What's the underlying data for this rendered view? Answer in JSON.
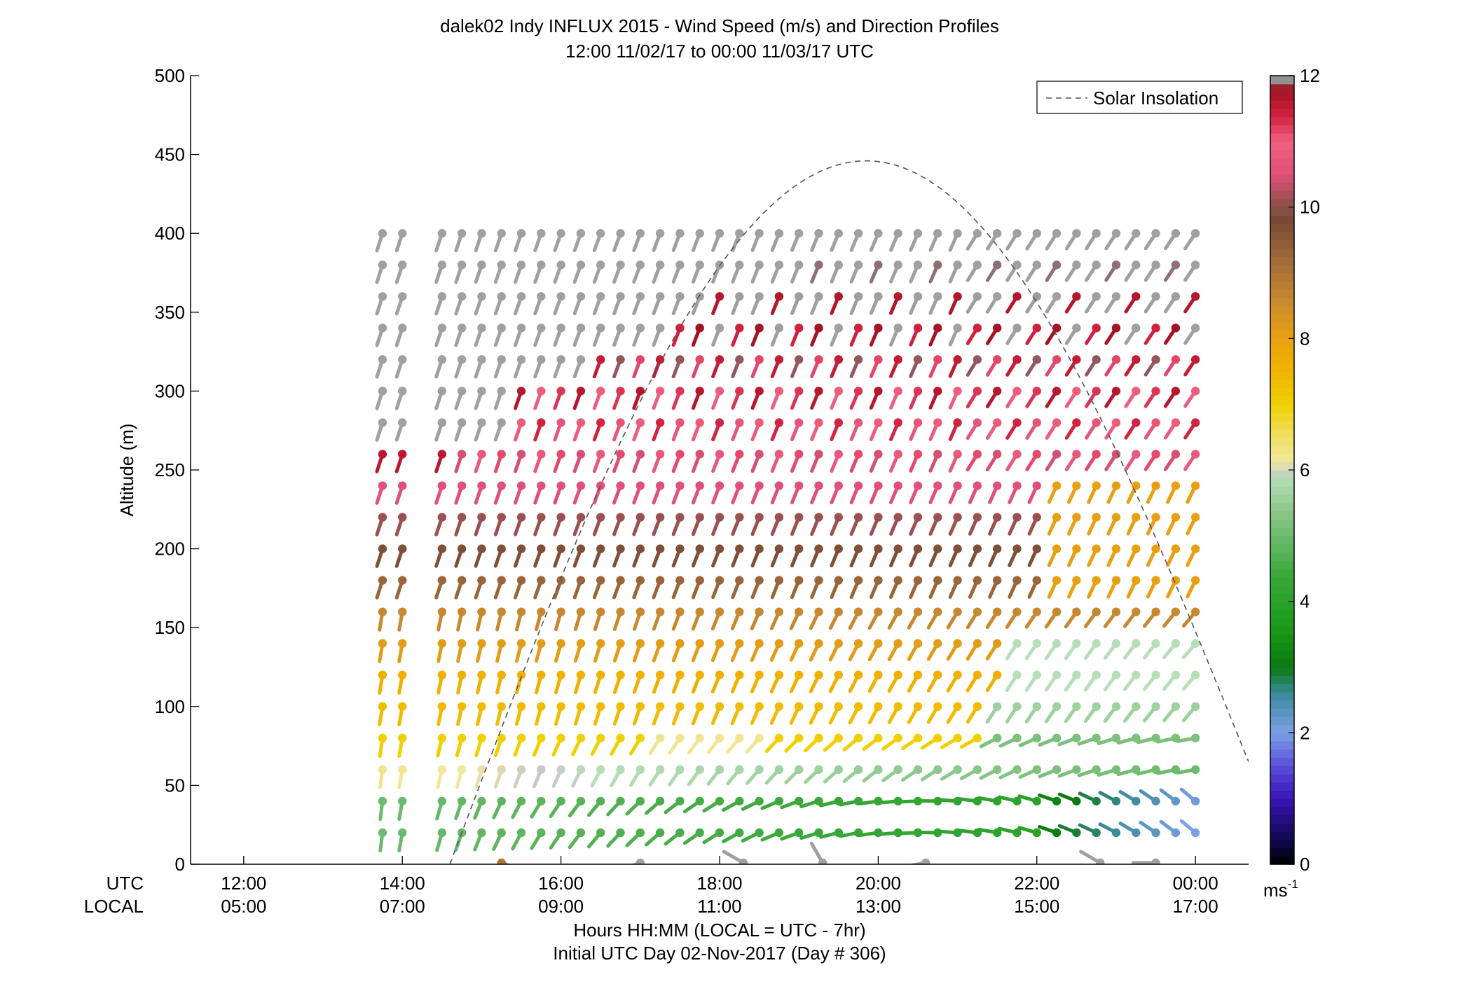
{
  "chart_data": {
    "type": "wind-barb-profile",
    "title": "dalek02 Indy INFLUX 2015 - Wind Speed (m/s) and Direction Profiles",
    "subtitle": "12:00 11/02/17 to 00:00 11/03/17  UTC",
    "ylabel": "Altitude (m)",
    "xlabel": "Hours HH:MM  (LOCAL = UTC - 7hr)",
    "xlabel2": "Initial UTC Day 02-Nov-2017 (Day # 306)",
    "x_row_labels": [
      "UTC",
      "LOCAL"
    ],
    "xlim_hours": [
      11.33,
      24.67
    ],
    "ylim": [
      0,
      500
    ],
    "yticks": [
      0,
      50,
      100,
      150,
      200,
      250,
      300,
      350,
      400,
      450,
      500
    ],
    "xticks_utc": [
      "12:00",
      "14:00",
      "16:00",
      "18:00",
      "20:00",
      "22:00",
      "00:00"
    ],
    "xticks_local": [
      "05:00",
      "07:00",
      "09:00",
      "11:00",
      "13:00",
      "15:00",
      "17:00"
    ],
    "xticks_hours": [
      12,
      14,
      16,
      18,
      20,
      22,
      24
    ],
    "legend": {
      "label": "Solar Insolation",
      "placement": "top-right"
    },
    "colorbar": {
      "unit_label": "ms",
      "unit_exp": "-1",
      "range": [
        0,
        12
      ],
      "ticks": [
        0,
        2,
        4,
        6,
        8,
        10,
        12
      ],
      "stops": [
        [
          0.0,
          "#000000"
        ],
        [
          0.3,
          "#0b0840"
        ],
        [
          1.0,
          "#3a12b8"
        ],
        [
          1.5,
          "#5a4fd8"
        ],
        [
          2.0,
          "#7aa0e8"
        ],
        [
          2.6,
          "#3c8a9a"
        ],
        [
          3.0,
          "#0a7a10"
        ],
        [
          3.6,
          "#1a9a1a"
        ],
        [
          4.4,
          "#3aa83a"
        ],
        [
          5.2,
          "#7cc07c"
        ],
        [
          5.9,
          "#b8deb8"
        ],
        [
          6.0,
          "#c8c8c8"
        ],
        [
          6.1,
          "#f0e8a0"
        ],
        [
          6.5,
          "#f0e068"
        ],
        [
          7.0,
          "#f0d000"
        ],
        [
          7.6,
          "#f0b000"
        ],
        [
          8.0,
          "#e8a010"
        ],
        [
          8.6,
          "#c88830"
        ],
        [
          9.2,
          "#a06a3a"
        ],
        [
          9.8,
          "#7a4a36"
        ],
        [
          10.0,
          "#8a5048"
        ],
        [
          10.5,
          "#e05078"
        ],
        [
          11.0,
          "#f06080"
        ],
        [
          11.4,
          "#d02040"
        ],
        [
          11.8,
          "#a01020"
        ],
        [
          11.9,
          "#888888"
        ],
        [
          12.0,
          "#a0a0a0"
        ]
      ]
    },
    "times_hours": [
      13.75,
      14.0,
      14.5,
      14.75,
      15.0,
      15.25,
      15.5,
      15.75,
      16.0,
      16.25,
      16.5,
      16.75,
      17.0,
      17.25,
      17.5,
      17.75,
      18.0,
      18.25,
      18.5,
      18.75,
      19.0,
      19.25,
      19.5,
      19.75,
      20.0,
      20.25,
      20.5,
      20.75,
      21.0,
      21.25,
      21.5,
      21.75,
      22.0,
      22.25,
      22.5,
      22.75,
      23.0,
      23.25,
      23.5,
      23.75,
      24.0
    ],
    "altitudes": [
      20,
      40,
      60,
      80,
      100,
      120,
      140,
      160,
      180,
      200,
      220,
      240,
      260,
      280,
      300,
      320,
      340,
      360,
      380,
      400
    ],
    "solar_insolation_curve": {
      "sunrise_hours": 14.6,
      "sunset_hours": 24.67,
      "noon_hours": 19.85,
      "peak_altitude_units": 446,
      "end_altitude_units": 65
    },
    "surface_wind": [
      {
        "t": 15.25,
        "speed": 9.0,
        "dir": 110
      },
      {
        "t": 17.0,
        "speed": 12.0,
        "dir": 250
      },
      {
        "t": 18.3,
        "speed": 12.0,
        "dir": 300
      },
      {
        "t": 19.3,
        "speed": 12.0,
        "dir": 330
      },
      {
        "t": 20.6,
        "speed": 12.0,
        "dir": 260
      },
      {
        "t": 22.8,
        "speed": 12.0,
        "dir": 300
      },
      {
        "t": 23.5,
        "speed": 12.0,
        "dir": 270
      }
    ]
  }
}
